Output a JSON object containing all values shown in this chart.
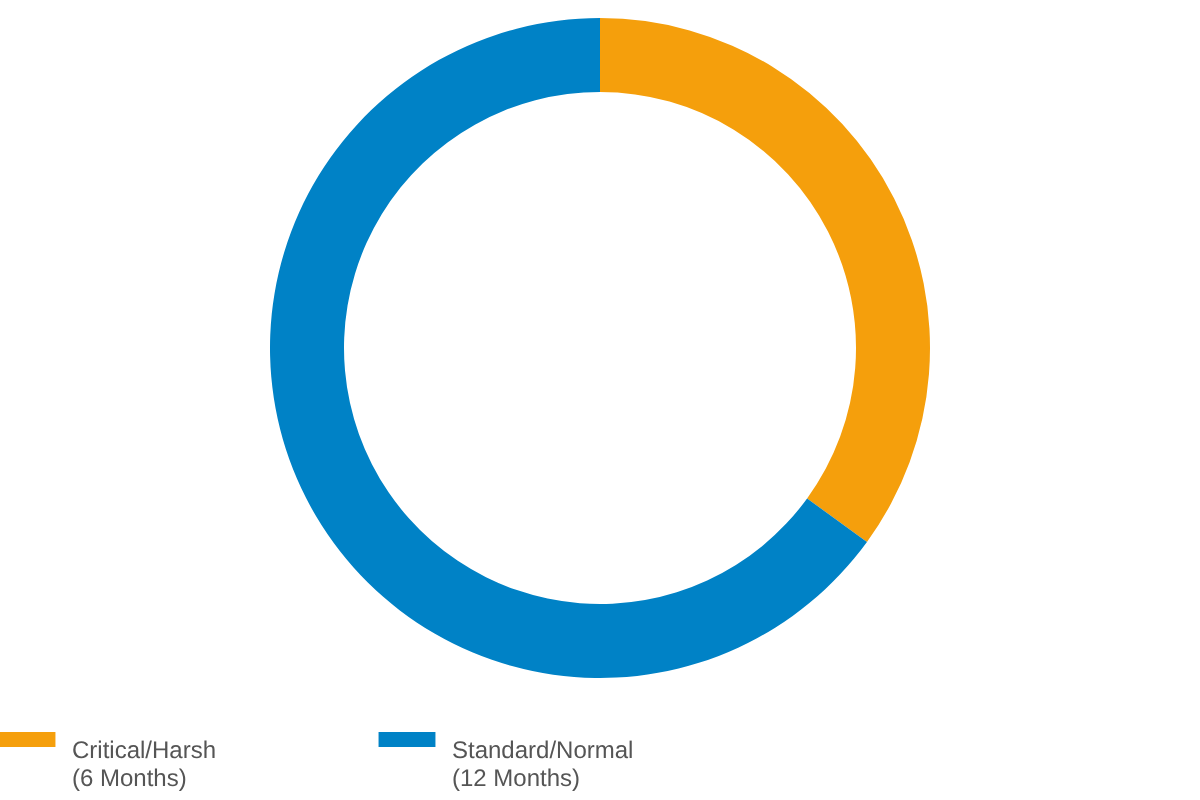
{
  "chart_data": {
    "type": "donut",
    "categories": [
      "Critical/Harsh\n(6 Months)",
      "Standard/Normal\n(12 Months)"
    ],
    "values": [
      35,
      65
    ],
    "colors": [
      "#f59f0c",
      "#0082c6"
    ],
    "legend": "bottom"
  }
}
